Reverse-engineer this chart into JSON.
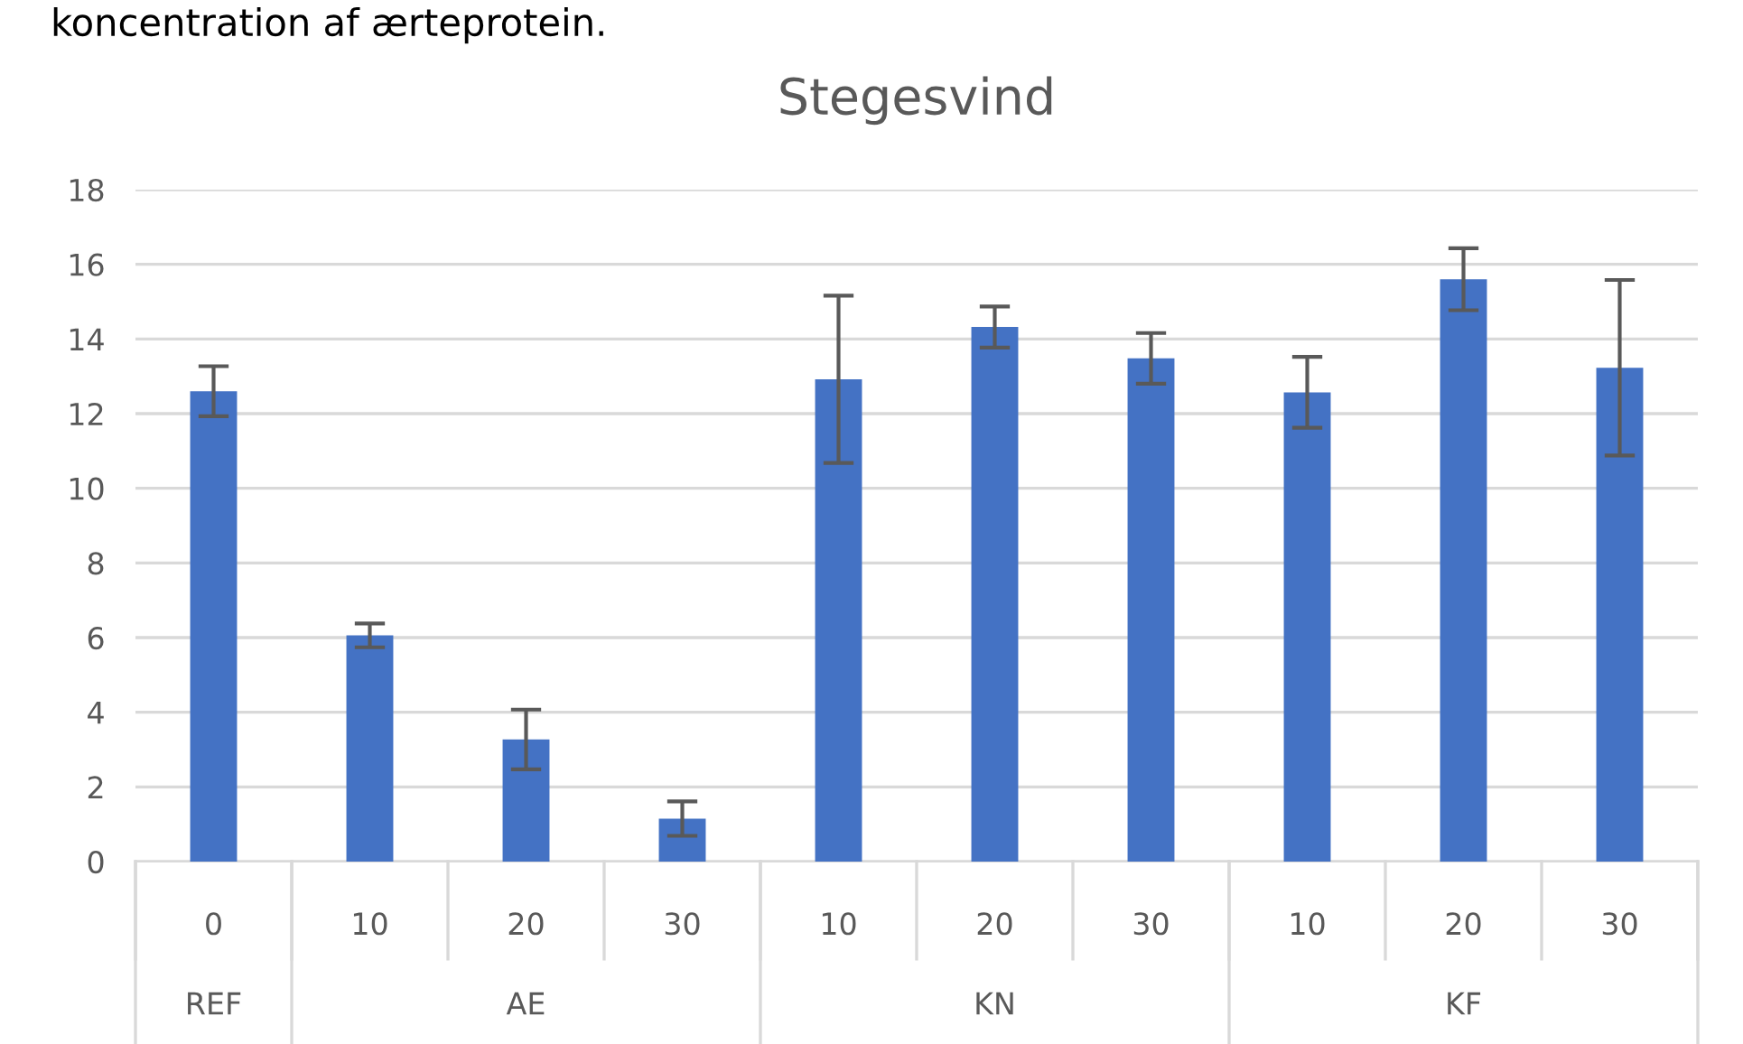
{
  "chart_data": {
    "type": "bar",
    "title": "Stegesvind",
    "categories": [
      "0",
      "10",
      "20",
      "30",
      "10",
      "20",
      "30",
      "10",
      "20",
      "30"
    ],
    "values": [
      12.6,
      6.06,
      3.27,
      1.15,
      12.92,
      14.32,
      13.48,
      12.57,
      15.6,
      13.23
    ],
    "errors": [
      0.67,
      0.32,
      0.8,
      0.46,
      2.24,
      0.55,
      0.68,
      0.95,
      0.83,
      2.35
    ],
    "color": "#4472c4",
    "ylim": [
      0,
      18
    ],
    "yticks": [
      0,
      2,
      4,
      6,
      8,
      10,
      12,
      14,
      16,
      18
    ],
    "grid": "y",
    "annotations": [
      "koncentration af ærteprotein.",
      "REF",
      "AE",
      "KN",
      "KF"
    ]
  }
}
